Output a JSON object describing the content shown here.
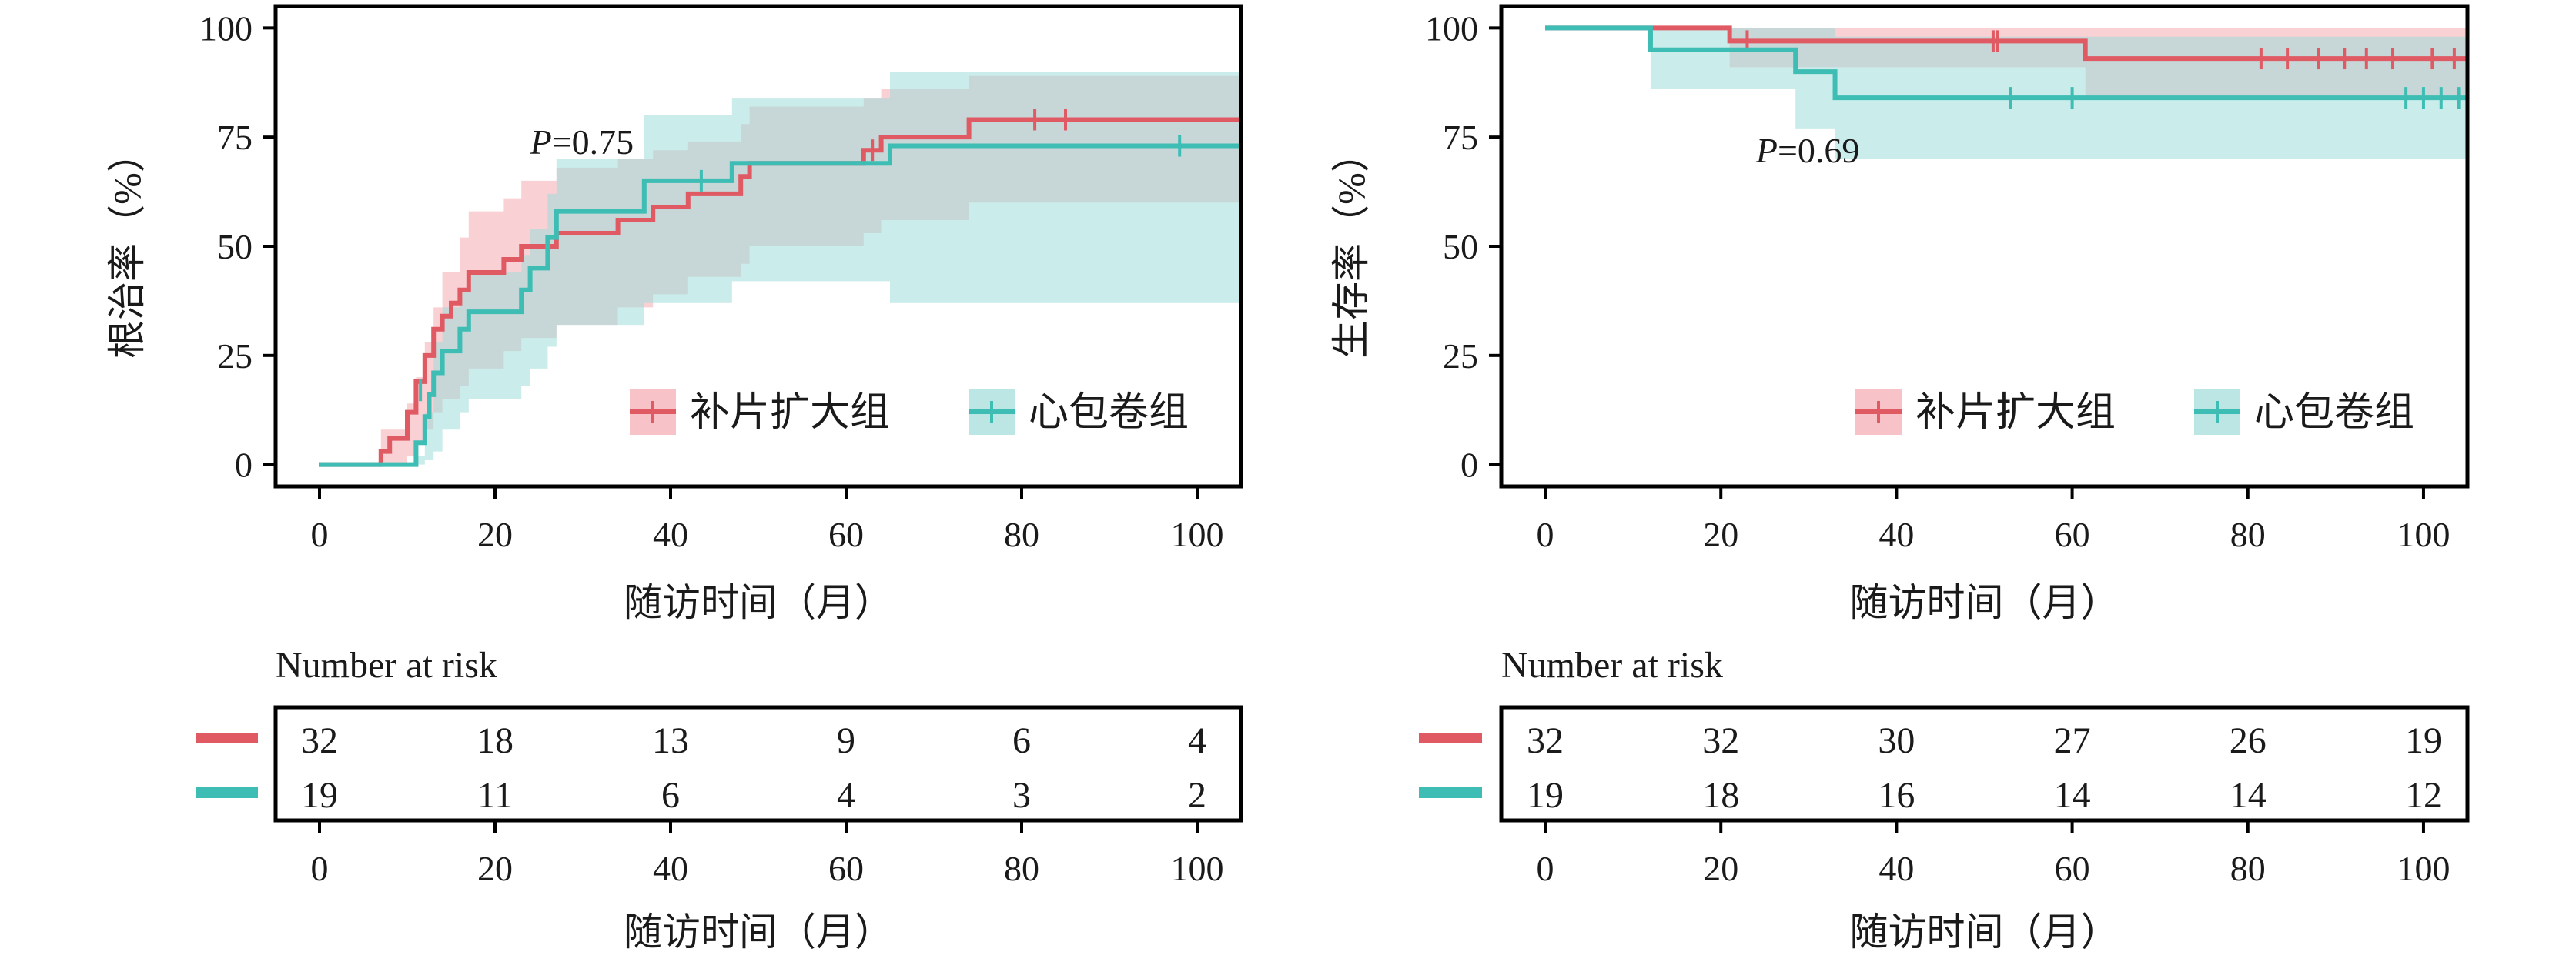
{
  "colors": {
    "red": "#e05a64",
    "teal": "#3dbdb4",
    "red_band": "#f4a9b0",
    "teal_band": "#9fdcd8"
  },
  "chart_data": [
    {
      "type": "line",
      "subtype": "kaplan-meier-cumulative-incidence",
      "ylabel": "根治率（%）",
      "xlabel": "随访时间（月）",
      "xlim": [
        -5,
        105
      ],
      "ylim": [
        -5,
        105
      ],
      "xticks": [
        "0",
        "20",
        "40",
        "60",
        "80",
        "100"
      ],
      "yticks": [
        "0",
        "25",
        "50",
        "75",
        "100"
      ],
      "annotation": {
        "prefix": "P",
        "text": "=0.75",
        "x": 24,
        "y": 74
      },
      "legend": {
        "placement": "bottom-right"
      },
      "series": [
        {
          "name": "补片扩大组",
          "color_key": "red",
          "steps": [
            [
              0,
              0
            ],
            [
              7,
              0
            ],
            [
              7,
              3
            ],
            [
              8,
              3
            ],
            [
              8,
              6
            ],
            [
              10,
              6
            ],
            [
              10,
              12
            ],
            [
              11,
              12
            ],
            [
              11,
              19
            ],
            [
              12,
              19
            ],
            [
              12,
              25
            ],
            [
              13,
              25
            ],
            [
              13,
              31
            ],
            [
              14,
              31
            ],
            [
              14,
              34
            ],
            [
              15,
              34
            ],
            [
              15,
              37
            ],
            [
              16,
              37
            ],
            [
              16,
              40
            ],
            [
              17,
              40
            ],
            [
              17,
              44
            ],
            [
              21,
              44
            ],
            [
              21,
              47
            ],
            [
              23,
              47
            ],
            [
              23,
              50
            ],
            [
              27,
              50
            ],
            [
              27,
              53
            ],
            [
              34,
              53
            ],
            [
              34,
              56
            ],
            [
              38,
              56
            ],
            [
              38,
              59
            ],
            [
              42,
              59
            ],
            [
              42,
              62
            ],
            [
              48,
              62
            ],
            [
              48,
              66
            ],
            [
              49,
              66
            ],
            [
              49,
              69
            ],
            [
              62,
              69
            ],
            [
              62,
              72
            ],
            [
              64,
              72
            ],
            [
              64,
              75
            ],
            [
              74,
              75
            ],
            [
              74,
              79
            ],
            [
              105,
              79
            ]
          ],
          "censor": [
            [
              63,
              72
            ],
            [
              81.5,
              79
            ],
            [
              85,
              79
            ]
          ],
          "band": [
            [
              0,
              0,
              0
            ],
            [
              7,
              0,
              8
            ],
            [
              10,
              2,
              14
            ],
            [
              11,
              5,
              20
            ],
            [
              12,
              8,
              28
            ],
            [
              13,
              12,
              36
            ],
            [
              14,
              15,
              44
            ],
            [
              16,
              18,
              52
            ],
            [
              17,
              22,
              58
            ],
            [
              21,
              26,
              61
            ],
            [
              23,
              29,
              65
            ],
            [
              27,
              32,
              68
            ],
            [
              34,
              36,
              70
            ],
            [
              38,
              39,
              72
            ],
            [
              42,
              43,
              74
            ],
            [
              48,
              46,
              78
            ],
            [
              49,
              50,
              82
            ],
            [
              62,
              53,
              84
            ],
            [
              64,
              56,
              86
            ],
            [
              74,
              60,
              89
            ],
            [
              105,
              60,
              89
            ]
          ]
        },
        {
          "name": "心包卷组",
          "color_key": "teal",
          "steps": [
            [
              0,
              0
            ],
            [
              11,
              0
            ],
            [
              11,
              5
            ],
            [
              12,
              5
            ],
            [
              12,
              11
            ],
            [
              12.5,
              11
            ],
            [
              12.5,
              16
            ],
            [
              13,
              16
            ],
            [
              13,
              21
            ],
            [
              14,
              21
            ],
            [
              14,
              26
            ],
            [
              16,
              26
            ],
            [
              16,
              31
            ],
            [
              17,
              31
            ],
            [
              17,
              35
            ],
            [
              23,
              35
            ],
            [
              23,
              40
            ],
            [
              24,
              40
            ],
            [
              24,
              45
            ],
            [
              26,
              45
            ],
            [
              26,
              52
            ],
            [
              27,
              52
            ],
            [
              27,
              58
            ],
            [
              37,
              58
            ],
            [
              37,
              65
            ],
            [
              47,
              65
            ],
            [
              47,
              69
            ],
            [
              65,
              69
            ],
            [
              65,
              73
            ],
            [
              105,
              73
            ]
          ],
          "censor": [
            [
              11.5,
              17
            ],
            [
              43.5,
              65
            ],
            [
              98,
              73
            ]
          ],
          "band": [
            [
              0,
              0,
              0
            ],
            [
              11,
              0,
              2
            ],
            [
              12,
              1,
              12
            ],
            [
              13,
              3,
              28
            ],
            [
              14,
              8,
              36
            ],
            [
              16,
              12,
              40
            ],
            [
              17,
              15,
              44
            ],
            [
              23,
              18,
              48
            ],
            [
              24,
              22,
              54
            ],
            [
              26,
              27,
              62
            ],
            [
              27,
              32,
              70
            ],
            [
              37,
              37,
              80
            ],
            [
              47,
              42,
              84
            ],
            [
              65,
              37,
              90
            ],
            [
              105,
              37,
              90
            ]
          ]
        }
      ],
      "risk_table": {
        "title": "Number at risk",
        "times": [
          "0",
          "20",
          "40",
          "60",
          "80",
          "100"
        ],
        "rows": [
          {
            "color_key": "red",
            "values": [
              "32",
              "18",
              "13",
              "9",
              "6",
              "4"
            ]
          },
          {
            "color_key": "teal",
            "values": [
              "19",
              "11",
              "6",
              "4",
              "3",
              "2"
            ]
          }
        ],
        "xlabel": "随访时间（月）"
      }
    },
    {
      "type": "line",
      "subtype": "kaplan-meier-survival",
      "ylabel": "生存率（%）",
      "xlabel": "随访时间（月）",
      "xlim": [
        -5,
        105
      ],
      "ylim": [
        -5,
        105
      ],
      "xticks": [
        "0",
        "20",
        "40",
        "60",
        "80",
        "100"
      ],
      "yticks": [
        "0",
        "25",
        "50",
        "75",
        "100"
      ],
      "annotation": {
        "prefix": "P",
        "text": "=0.69",
        "x": 24,
        "y": 72
      },
      "legend": {
        "placement": "bottom-right"
      },
      "series": [
        {
          "name": "补片扩大组",
          "color_key": "red",
          "steps": [
            [
              0,
              100
            ],
            [
              21,
              100
            ],
            [
              21,
              97
            ],
            [
              61.5,
              97
            ],
            [
              61.5,
              93
            ],
            [
              105,
              93
            ]
          ],
          "censor": [
            [
              23,
              97
            ],
            [
              51,
              97
            ],
            [
              51.5,
              97
            ],
            [
              81.5,
              93
            ],
            [
              84.5,
              93
            ],
            [
              88,
              93
            ],
            [
              91,
              93
            ],
            [
              93.5,
              93
            ],
            [
              96.5,
              93
            ],
            [
              101,
              93
            ],
            [
              103.5,
              93
            ]
          ],
          "band": [
            [
              0,
              100,
              100
            ],
            [
              21,
              91,
              100
            ],
            [
              61.5,
              84,
              100
            ],
            [
              105,
              84,
              100
            ]
          ]
        },
        {
          "name": "心包卷组",
          "color_key": "teal",
          "steps": [
            [
              0,
              100
            ],
            [
              12,
              100
            ],
            [
              12,
              95
            ],
            [
              28.5,
              95
            ],
            [
              28.5,
              90
            ],
            [
              33,
              90
            ],
            [
              33,
              84
            ],
            [
              105,
              84
            ]
          ],
          "censor": [
            [
              53,
              84
            ],
            [
              60,
              84
            ],
            [
              98,
              84
            ],
            [
              100,
              84
            ],
            [
              102,
              84
            ],
            [
              104,
              84
            ]
          ],
          "band": [
            [
              0,
              100,
              100
            ],
            [
              12,
              86,
              100
            ],
            [
              28.5,
              77,
              100
            ],
            [
              33,
              70,
              98
            ],
            [
              105,
              70,
              98
            ]
          ]
        }
      ],
      "risk_table": {
        "title": "Number at risk",
        "times": [
          "0",
          "20",
          "40",
          "60",
          "80",
          "100"
        ],
        "rows": [
          {
            "color_key": "red",
            "values": [
              "32",
              "32",
              "30",
              "27",
              "26",
              "19"
            ]
          },
          {
            "color_key": "teal",
            "values": [
              "19",
              "18",
              "16",
              "14",
              "14",
              "12"
            ]
          }
        ],
        "xlabel": "随访时间（月）"
      }
    }
  ]
}
